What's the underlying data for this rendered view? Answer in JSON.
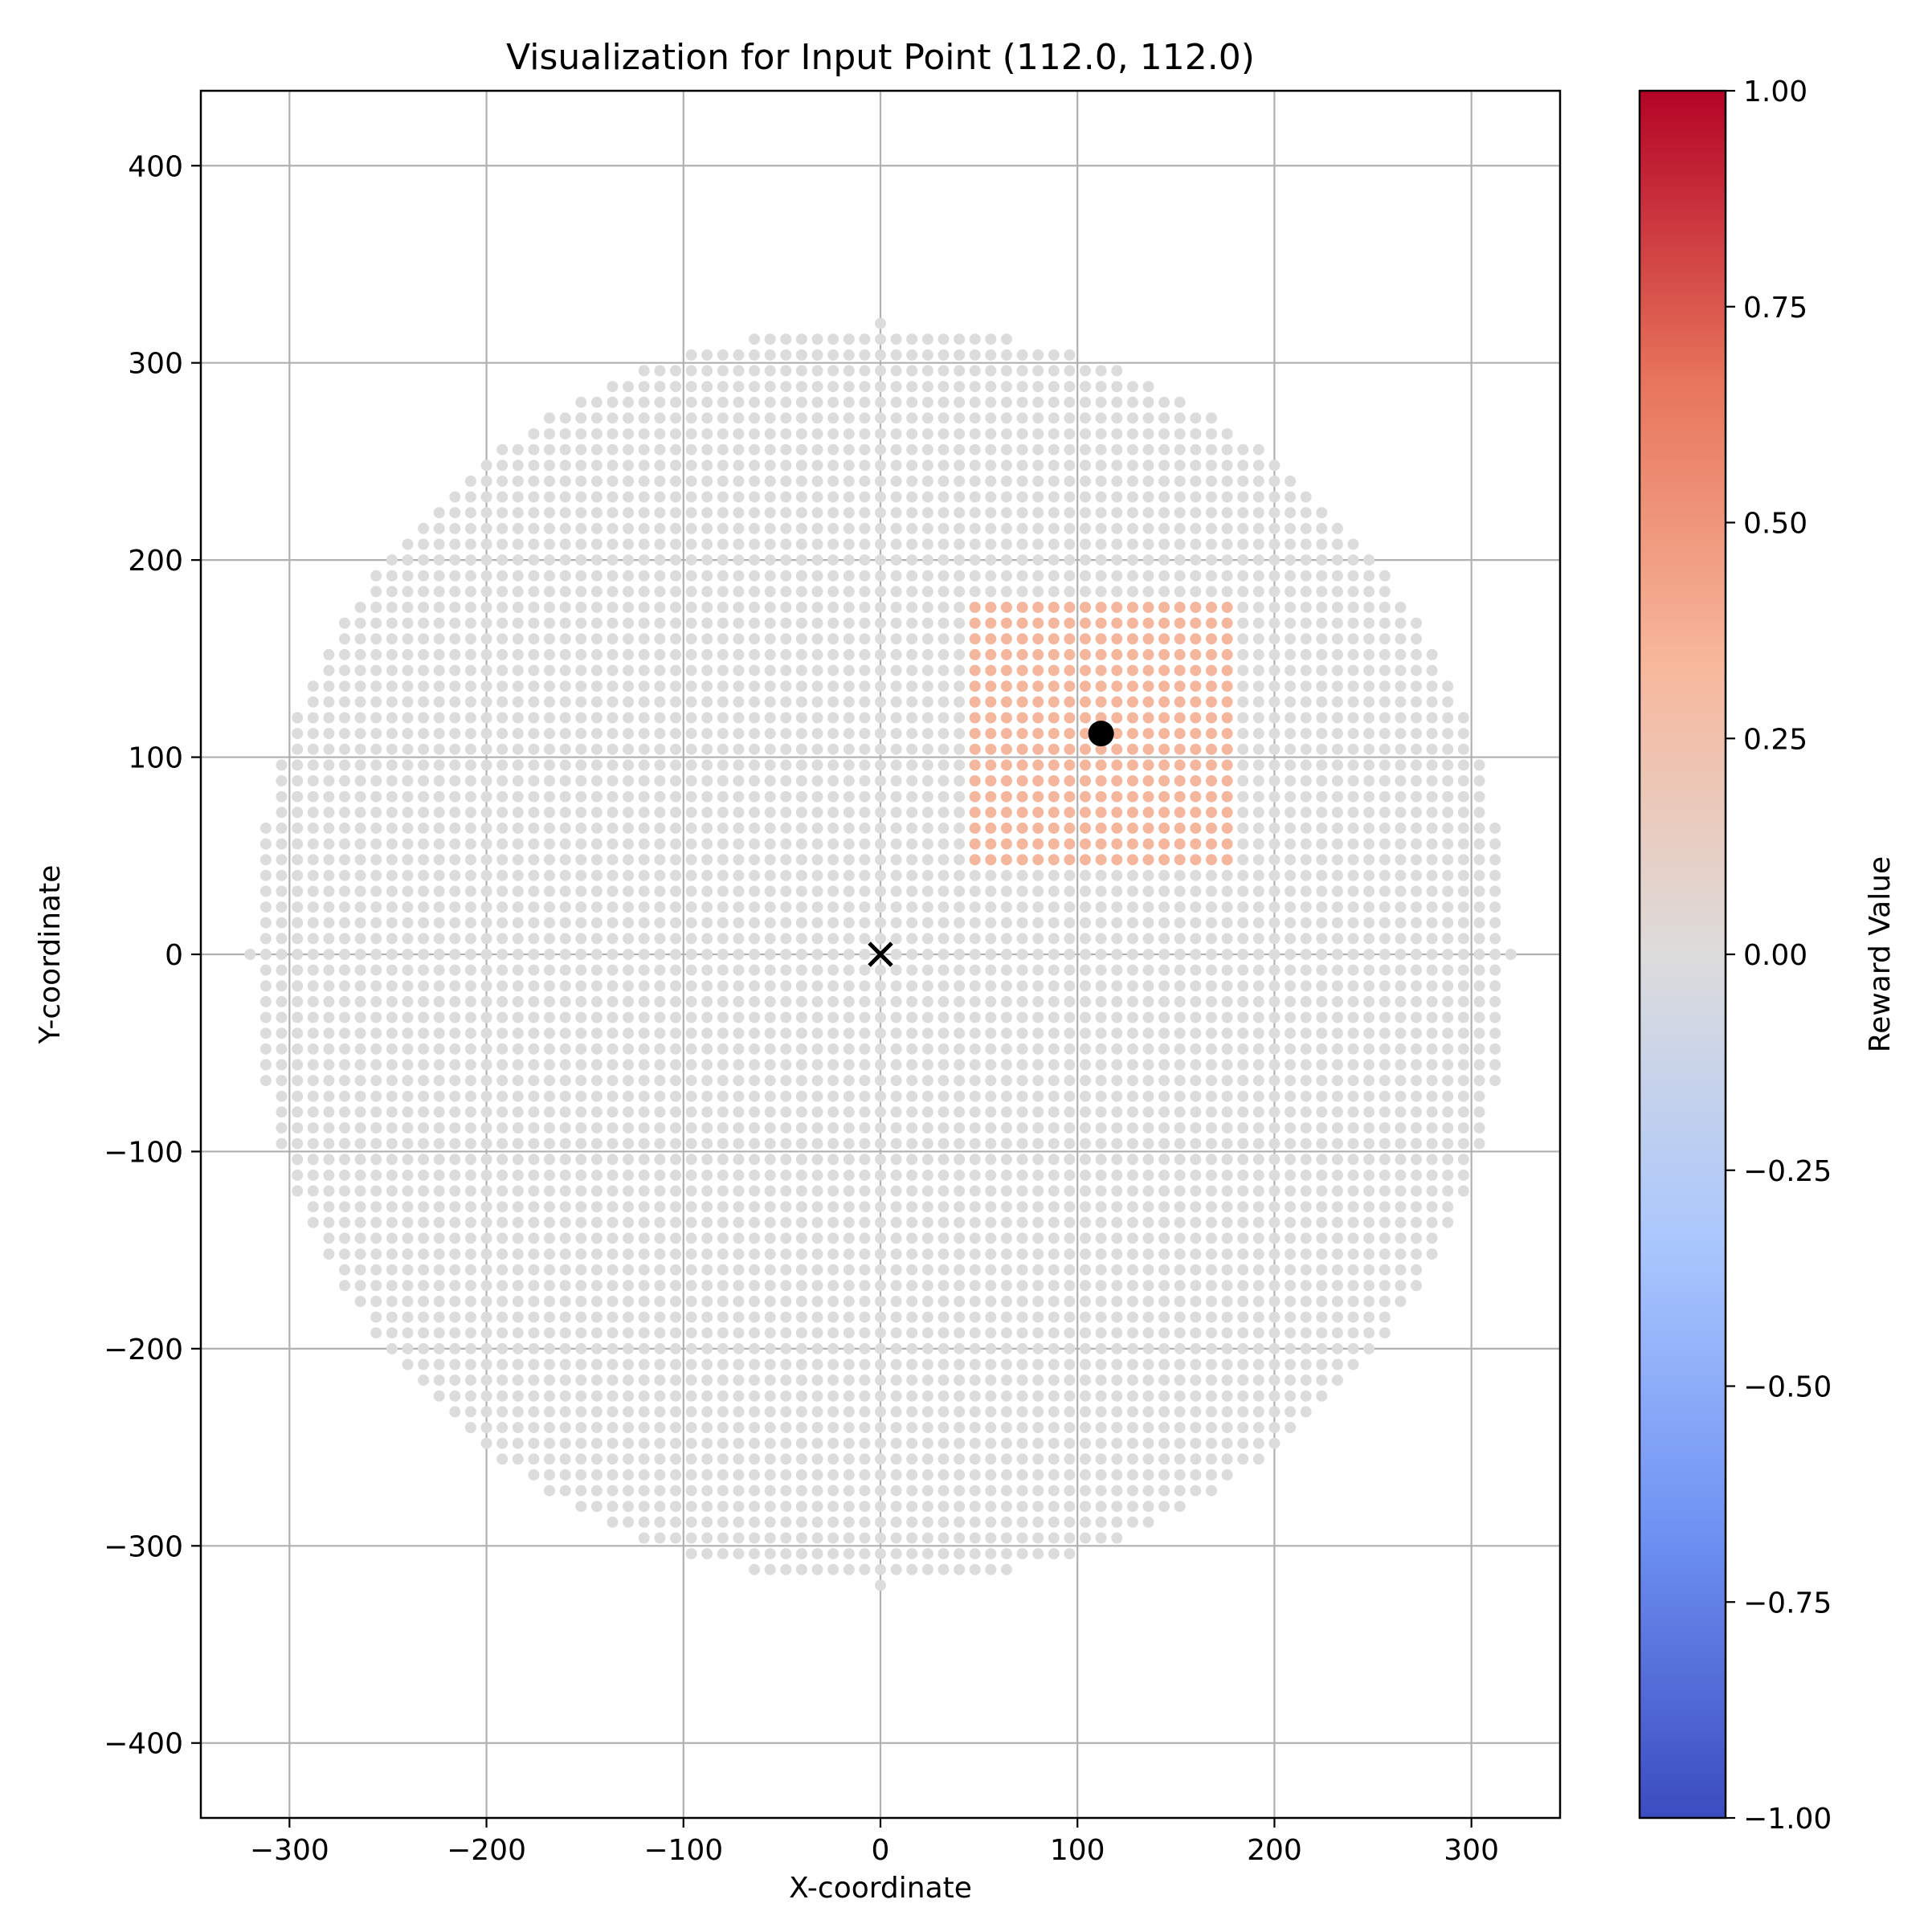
{
  "chart_data": {
    "type": "scatter",
    "title": "Visualization for Input Point (112.0, 112.0)",
    "xlabel": "X-coordinate",
    "ylabel": "Y-coordinate",
    "xlim": [
      -345,
      345
    ],
    "ylim": [
      -438,
      438
    ],
    "xticks": [
      -300,
      -200,
      -100,
      0,
      100,
      200,
      300
    ],
    "yticks": [
      -400,
      -300,
      -200,
      -100,
      0,
      100,
      200,
      300,
      400
    ],
    "xtick_labels": [
      "−300",
      "−200",
      "−100",
      "0",
      "100",
      "200",
      "300"
    ],
    "ytick_labels": [
      "−400",
      "−300",
      "−200",
      "−100",
      "0",
      "100",
      "200",
      "300",
      "400"
    ],
    "grid": true,
    "series": [
      {
        "kind": "grid-points",
        "spacing": 8,
        "radius": 320,
        "default_value": 0.0,
        "regions": [
          {
            "x_range": [
              48,
              176
            ],
            "y_range": [
              48,
              176
            ],
            "value": 0.3
          }
        ]
      },
      {
        "kind": "marker",
        "shape": "circle",
        "x": 112,
        "y": 112,
        "color": "#000000"
      },
      {
        "kind": "marker",
        "shape": "x",
        "x": 0,
        "y": 0,
        "color": "#000000"
      }
    ],
    "colorbar": {
      "label": "Reward Value",
      "colormap": "coolwarm",
      "range": [
        -1.0,
        1.0
      ],
      "ticks": [
        1.0,
        0.75,
        0.5,
        0.25,
        0.0,
        -0.25,
        -0.5,
        -0.75,
        -1.0
      ],
      "tick_labels": [
        "1.00",
        "0.75",
        "0.50",
        "0.25",
        "0.00",
        "−0.25",
        "−0.50",
        "−0.75",
        "−1.00"
      ],
      "stops": [
        "#3b4cc0",
        "#6f92f3",
        "#aac7fd",
        "#dddcdc",
        "#f7b89c",
        "#e7745b",
        "#b40426"
      ]
    },
    "colors": {
      "neutral_point": "#dcdcdc",
      "highlight_point": "#f4b79e",
      "grid": "#b0b0b0"
    }
  }
}
